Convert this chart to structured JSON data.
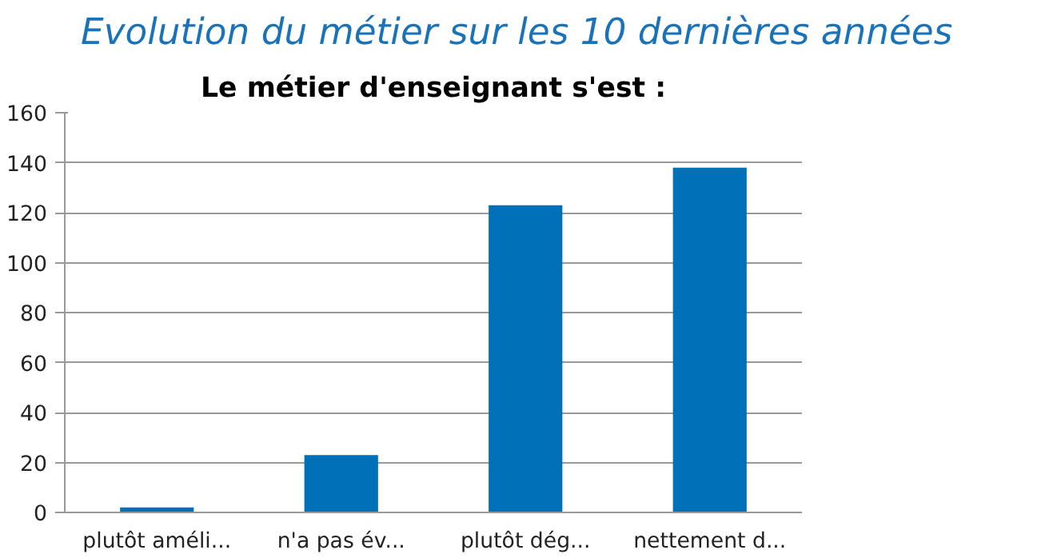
{
  "chart_data": {
    "type": "bar",
    "title": "Evolution du métier sur les 10 dernières années",
    "subtitle": "Le métier d'enseignant s'est :",
    "categories": [
      "plutôt améli...",
      "n'a pas év...",
      "plutôt dég...",
      "nettement d..."
    ],
    "values": [
      2,
      23,
      123,
      138
    ],
    "color": "#0070b8",
    "ylim": [
      0,
      160
    ],
    "yticks": [
      0,
      20,
      40,
      60,
      80,
      100,
      120,
      140,
      160
    ],
    "grid": "y"
  }
}
